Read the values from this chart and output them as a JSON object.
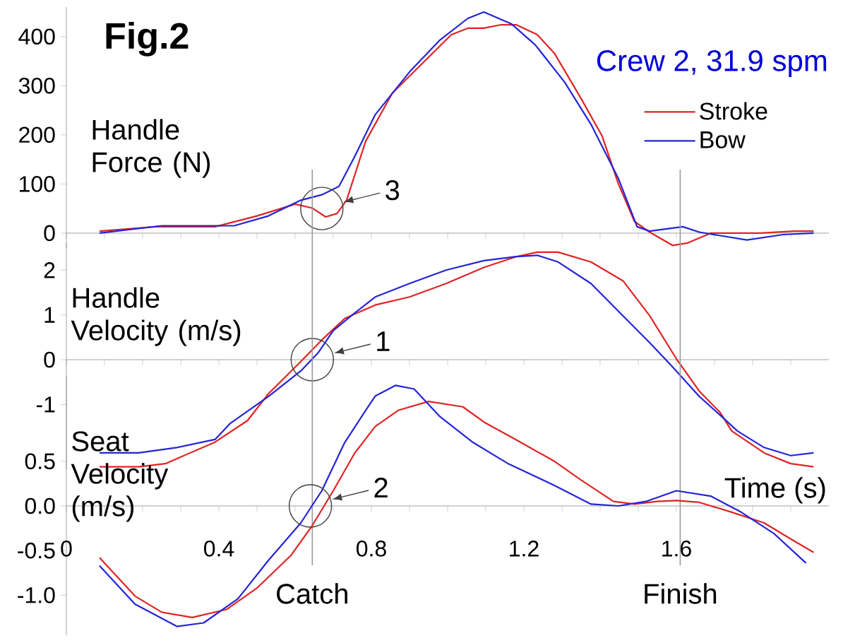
{
  "chart_data": [
    {
      "type": "line",
      "title": "Fig.2",
      "subtitle": "Crew 2, 31.9 spm",
      "ylabel": "Handle Force (N)",
      "legend": "top right",
      "tick_labels": "y",
      "xlim": [
        0,
        2.0
      ],
      "xticks": [
        0,
        {
          "value": 0.1,
          "label": null
        },
        {
          "value": 0.2,
          "label": null
        },
        {
          "value": 0.3,
          "label": null
        },
        0.4,
        {
          "value": 0.5,
          "label": null
        },
        {
          "value": 0.6,
          "label": null
        },
        {
          "value": 0.7,
          "label": null
        },
        0.8,
        {
          "value": 0.9,
          "label": null
        },
        {
          "value": 1.0,
          "label": null
        },
        {
          "value": 1.1,
          "label": null
        },
        1.2,
        {
          "value": 1.3,
          "label": null
        },
        {
          "value": 1.4,
          "label": null
        },
        {
          "value": 1.5,
          "label": null
        },
        1.6,
        {
          "value": 1.7,
          "label": null
        },
        {
          "value": 1.8,
          "label": null
        },
        {
          "value": 1.9,
          "label": null
        }
      ],
      "ylim": [
        -30,
        460
      ],
      "yticks": [
        0,
        100,
        200,
        300,
        400
      ],
      "annotations": [
        {
          "text": "3",
          "x": 0.67,
          "y": 50
        }
      ],
      "series": [
        {
          "name": "Stroke",
          "color": "#e02424",
          "x": [
            0.087,
            0.235,
            0.39,
            0.5,
            0.6,
            0.645,
            0.68,
            0.71,
            0.735,
            0.785,
            0.855,
            0.925,
            1.01,
            1.053,
            1.095,
            1.14,
            1.18,
            1.235,
            1.28,
            1.35,
            1.405,
            1.448,
            1.49,
            1.53,
            1.59,
            1.63,
            1.69,
            1.77,
            1.82,
            1.91,
            1.96
          ],
          "values": [
            4,
            13,
            13,
            35,
            59,
            51,
            33,
            40,
            67,
            187,
            285,
            339,
            404,
            417,
            417,
            424,
            424,
            404,
            366,
            274,
            198,
            100,
            24,
            2,
            -25,
            -20,
            0,
            0,
            0,
            4,
            4
          ]
        },
        {
          "name": "Bow",
          "color": "#2424d8",
          "x": [
            0.087,
            0.25,
            0.44,
            0.53,
            0.615,
            0.67,
            0.715,
            0.755,
            0.81,
            0.9,
            0.98,
            1.053,
            1.095,
            1.167,
            1.23,
            1.307,
            1.377,
            1.448,
            1.497,
            1.53,
            1.617,
            1.66,
            1.785,
            1.88,
            1.96
          ],
          "values": [
            0,
            15,
            15,
            35,
            67,
            78,
            95,
            154,
            241,
            328,
            393,
            437,
            450,
            426,
            383,
            307,
            220,
            111,
            13,
            4,
            13,
            2,
            -14,
            -3,
            0
          ]
        }
      ]
    },
    {
      "type": "line",
      "ylabel": "Handle Velocity (m/s)",
      "tick_labels": "y",
      "xlim": [
        0,
        2.0
      ],
      "xticks": [
        0,
        {
          "value": 0.1,
          "label": null
        },
        {
          "value": 0.2,
          "label": null
        },
        {
          "value": 0.3,
          "label": null
        },
        0.4,
        {
          "value": 0.5,
          "label": null
        },
        {
          "value": 0.6,
          "label": null
        },
        {
          "value": 0.7,
          "label": null
        },
        0.8,
        {
          "value": 0.9,
          "label": null
        },
        {
          "value": 1.0,
          "label": null
        },
        {
          "value": 1.1,
          "label": null
        },
        1.2,
        {
          "value": 1.3,
          "label": null
        },
        {
          "value": 1.4,
          "label": null
        },
        {
          "value": 1.5,
          "label": null
        },
        1.6,
        {
          "value": 1.7,
          "label": null
        },
        {
          "value": 1.8,
          "label": null
        },
        {
          "value": 1.9,
          "label": null
        }
      ],
      "ylim": [
        -2.45,
        2.6
      ],
      "yticks": [
        -1,
        0,
        1,
        2
      ],
      "annotations": [
        {
          "text": "1",
          "x": 0.645,
          "y": 0
        }
      ],
      "series": [
        {
          "color": "#e02424",
          "x": [
            0.087,
            0.19,
            0.26,
            0.39,
            0.475,
            0.53,
            0.615,
            0.67,
            0.73,
            0.81,
            0.9,
            0.996,
            1.095,
            1.18,
            1.235,
            1.29,
            1.376,
            1.46,
            1.53,
            1.6,
            1.66,
            1.715,
            1.745,
            1.83,
            1.9,
            1.96
          ],
          "values": [
            -2.39,
            -2.39,
            -2.32,
            -1.84,
            -1.36,
            -0.76,
            -0.04,
            0.44,
            0.92,
            1.22,
            1.4,
            1.7,
            2.06,
            2.3,
            2.4,
            2.4,
            2.18,
            1.76,
            0.98,
            0.02,
            -0.7,
            -1.18,
            -1.59,
            -2.08,
            -2.32,
            -2.39
          ]
        },
        {
          "color": "#2424d8",
          "x": [
            0.087,
            0.19,
            0.29,
            0.39,
            0.43,
            0.53,
            0.615,
            0.66,
            0.7,
            0.75,
            0.81,
            0.9,
            0.996,
            1.095,
            1.18,
            1.235,
            1.29,
            1.376,
            1.46,
            1.53,
            1.59,
            1.66,
            1.715,
            1.76,
            1.83,
            1.9,
            1.96
          ],
          "values": [
            -2.08,
            -2.08,
            -1.96,
            -1.78,
            -1.42,
            -0.82,
            -0.25,
            0.15,
            0.65,
            1.0,
            1.4,
            1.7,
            2.0,
            2.21,
            2.3,
            2.33,
            2.18,
            1.7,
            0.98,
            0.38,
            -0.16,
            -0.82,
            -1.24,
            -1.59,
            -1.96,
            -2.14,
            -2.08
          ]
        }
      ]
    },
    {
      "type": "line",
      "ylabel": "Seat Velocity (m/s)",
      "xlabel": "Time (s)",
      "xlim": [
        0,
        2.0
      ],
      "xticks": [
        0,
        {
          "value": 0.1,
          "label": null
        },
        {
          "value": 0.2,
          "label": null
        },
        {
          "value": 0.3,
          "label": null
        },
        0.4,
        {
          "value": 0.5,
          "label": null
        },
        {
          "value": 0.6,
          "label": null
        },
        {
          "value": 0.7,
          "label": null
        },
        0.8,
        {
          "value": 0.9,
          "label": null
        },
        {
          "value": 1.0,
          "label": null
        },
        {
          "value": 1.1,
          "label": null
        },
        1.2,
        {
          "value": 1.3,
          "label": null
        },
        {
          "value": 1.4,
          "label": null
        },
        {
          "value": 1.5,
          "label": null
        },
        1.6,
        {
          "value": 1.7,
          "label": null
        },
        {
          "value": 1.8,
          "label": null
        },
        {
          "value": 1.9,
          "label": null
        }
      ],
      "ylim": [
        -1.45,
        1.45
      ],
      "yticks": [
        {
          "value": -1,
          "label": "-1.0"
        },
        -0.5,
        {
          "value": 0,
          "label": "0.0"
        },
        0.5
      ],
      "annotations": [
        {
          "text": "2",
          "x": 0.64,
          "y": 0
        }
      ],
      "ref_lines": [
        {
          "axis": "x",
          "value": 0.645,
          "label": "Catch"
        },
        {
          "axis": "x",
          "value": 1.61,
          "label": "Finish"
        }
      ],
      "series": [
        {
          "color": "#e02424",
          "x": [
            0.087,
            0.18,
            0.25,
            0.33,
            0.42,
            0.5,
            0.59,
            0.645,
            0.7,
            0.756,
            0.81,
            0.87,
            0.95,
            1.04,
            1.095,
            1.18,
            1.28,
            1.35,
            1.435,
            1.49,
            1.55,
            1.6,
            1.66,
            1.745,
            1.83,
            1.9,
            1.96
          ],
          "values": [
            -0.58,
            -1.01,
            -1.19,
            -1.25,
            -1.16,
            -0.92,
            -0.55,
            -0.22,
            0.17,
            0.59,
            0.89,
            1.07,
            1.17,
            1.11,
            0.94,
            0.74,
            0.5,
            0.29,
            0.05,
            0.02,
            0.05,
            0.06,
            0.04,
            -0.07,
            -0.19,
            -0.37,
            -0.52
          ]
        },
        {
          "color": "#2424d8",
          "x": [
            0.087,
            0.18,
            0.29,
            0.36,
            0.45,
            0.53,
            0.615,
            0.67,
            0.73,
            0.785,
            0.81,
            0.863,
            0.912,
            0.98,
            1.067,
            1.16,
            1.28,
            1.376,
            1.448,
            1.52,
            1.6,
            1.69,
            1.77,
            1.856,
            1.94
          ],
          "values": [
            -0.67,
            -1.1,
            -1.35,
            -1.31,
            -1.04,
            -0.61,
            -0.19,
            0.17,
            0.71,
            1.07,
            1.23,
            1.35,
            1.31,
            1.0,
            0.71,
            0.47,
            0.23,
            0.02,
            0.0,
            0.05,
            0.17,
            0.11,
            -0.07,
            -0.31,
            -0.64
          ]
        }
      ]
    }
  ]
}
